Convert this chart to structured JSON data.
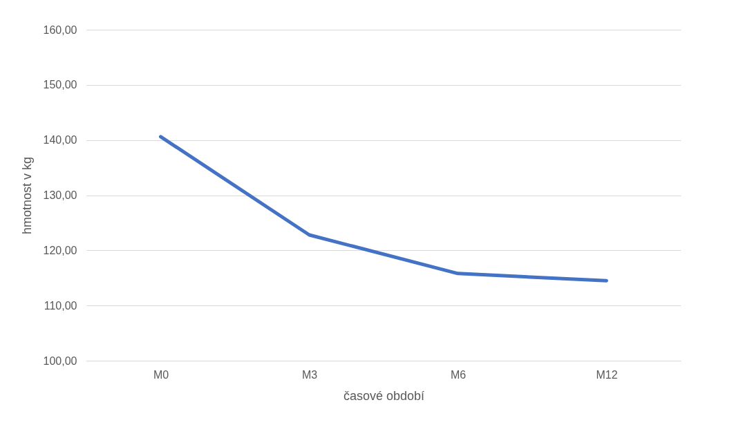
{
  "chart_data": {
    "type": "line",
    "xlabel": "časové období",
    "ylabel": "hmotnost v kg",
    "categories": [
      "M0",
      "M3",
      "M6",
      "M12"
    ],
    "series": [
      {
        "color": "#4472c4",
        "values": [
          140.6,
          122.8,
          115.8,
          114.5
        ]
      }
    ],
    "ylim": [
      100,
      160
    ],
    "yticks": [
      {
        "value": 100,
        "label": "100,00"
      },
      {
        "value": 110,
        "label": "110,00"
      },
      {
        "value": 120,
        "label": "120,00"
      },
      {
        "value": 130,
        "label": "130,00"
      },
      {
        "value": 140,
        "label": "140,00"
      },
      {
        "value": 150,
        "label": "150,00"
      },
      {
        "value": 160,
        "label": "160,00"
      }
    ],
    "grid": "y",
    "marker": "none",
    "line_style": "solid"
  }
}
